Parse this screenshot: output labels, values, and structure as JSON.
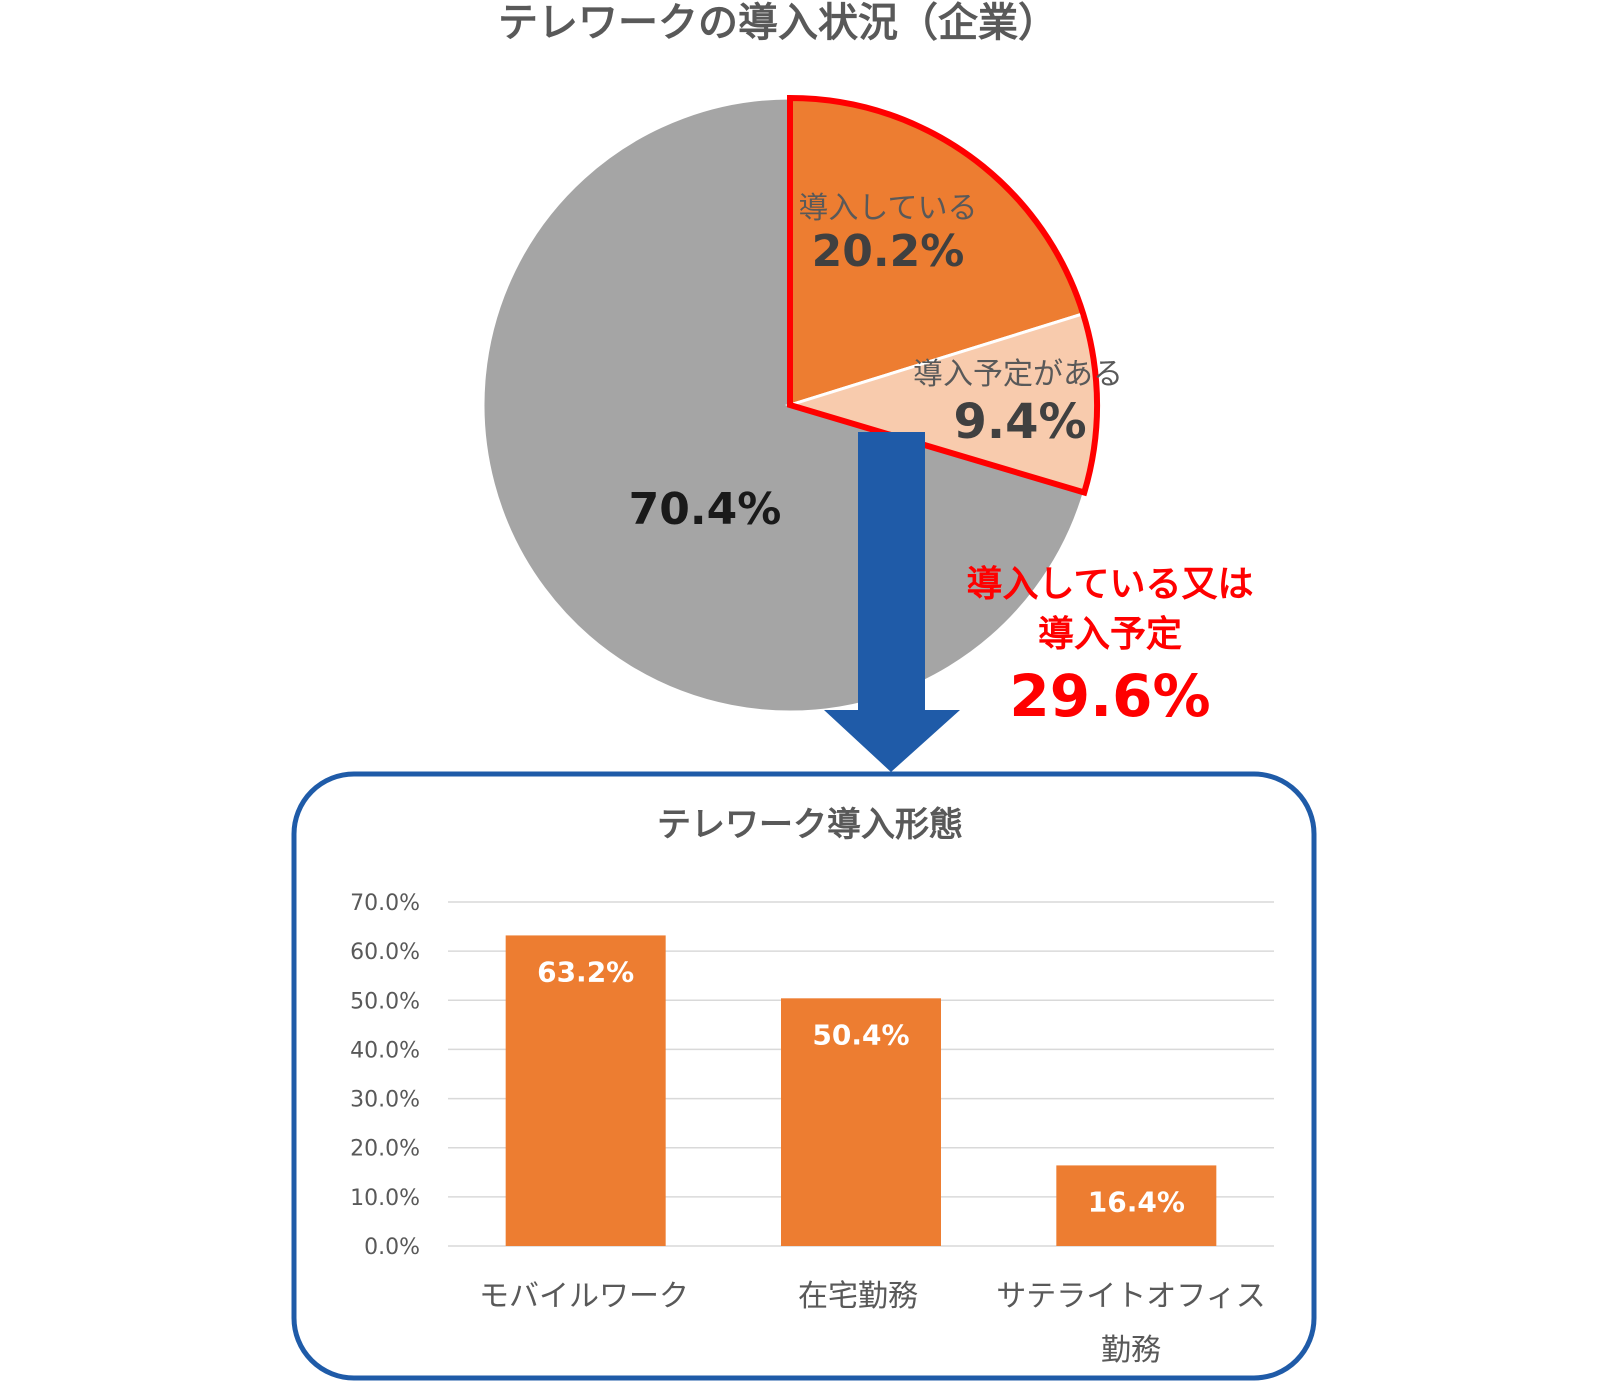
{
  "colors": {
    "implemented": "#ED7D31",
    "planned": "#F8CBAD",
    "other": "#A5A5A5",
    "highlight": "#FF0000",
    "arrow": "#1F5BA8",
    "bar": "#ED7D31",
    "title": "#595959",
    "axis_text": "#595959",
    "grid": "#D9D9D9"
  },
  "pie": {
    "title": "テレワークの導入状況（企業）",
    "slices": [
      {
        "label": "導入している",
        "value_label": "20.2%",
        "value": 20.2
      },
      {
        "label": "導入予定がある",
        "value_label": "9.4%",
        "value": 9.4
      },
      {
        "label": "",
        "value_label": "70.4%",
        "value": 70.4
      }
    ]
  },
  "summary": {
    "line1": "導入している又は",
    "line2": "導入予定",
    "value": "29.6%"
  },
  "bar": {
    "title": "テレワーク導入形態",
    "y_ticks": [
      "0.0%",
      "10.0%",
      "20.0%",
      "30.0%",
      "40.0%",
      "50.0%",
      "60.0%",
      "70.0%"
    ],
    "categories": [
      {
        "line1": "モバイルワーク",
        "line2": ""
      },
      {
        "line1": "在宅勤務",
        "line2": ""
      },
      {
        "line1": "サテライトオフィス",
        "line2": "勤務"
      }
    ],
    "value_labels": [
      "63.2%",
      "50.4%",
      "16.4%"
    ]
  },
  "chart_data": [
    {
      "type": "pie",
      "title": "テレワークの導入状況（企業）",
      "categories": [
        "導入している",
        "導入予定がある",
        ""
      ],
      "values": [
        20.2,
        9.4,
        70.4
      ],
      "unit": "%"
    },
    {
      "type": "bar",
      "title": "テレワーク導入形態",
      "categories": [
        "モバイルワーク",
        "在宅勤務",
        "サテライトオフィス勤務"
      ],
      "values": [
        63.2,
        50.4,
        16.4
      ],
      "ylim": [
        0,
        70
      ],
      "ytick_step": 10,
      "grid": true,
      "unit": "%"
    }
  ]
}
